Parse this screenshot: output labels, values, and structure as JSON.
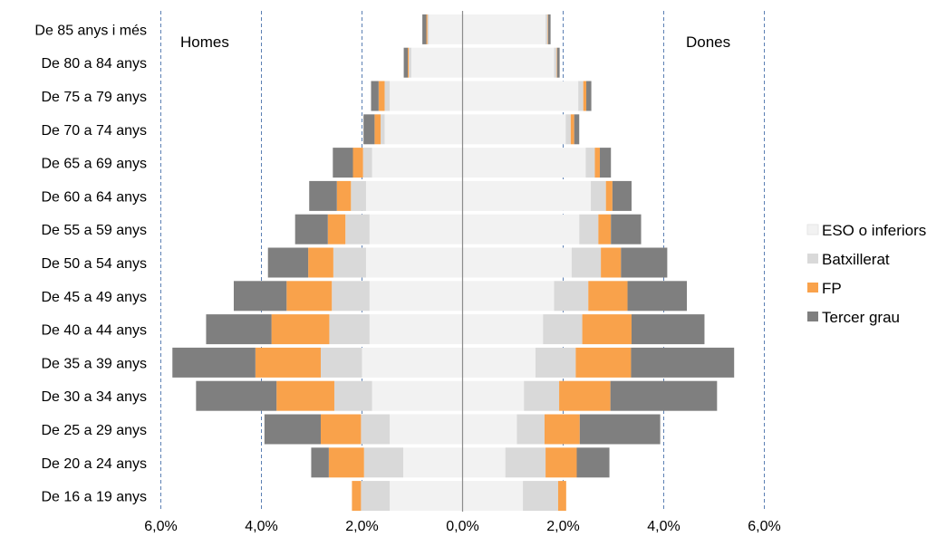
{
  "chart_data": {
    "type": "bar",
    "orientation": "horizontal",
    "stacked": true,
    "side_labels": {
      "left": "Homes",
      "right": "Dones"
    },
    "categories": [
      "De 85 anys i més",
      "De 80 a 84 anys",
      "De 75 a 79 anys",
      "De 70 a 74 anys",
      "De 65 a 69 anys",
      "De 60 a 64 anys",
      "De 55 a 59 anys",
      "De 50 a 54 anys",
      "De 45 a 49 anys",
      "De 40 a 44 anys",
      "De 35 a 39 anys",
      "De 30 a 34 anys",
      "De 25 a 29 anys",
      "De 20 a 24 anys",
      "De 16 a 19 anys"
    ],
    "series": [
      {
        "name": "ESO o inferiors",
        "color": "#f2f2f2",
        "homes": [
          0.67,
          1.02,
          1.45,
          1.55,
          1.8,
          1.92,
          1.85,
          1.92,
          1.85,
          1.85,
          2.0,
          1.8,
          1.45,
          1.18,
          1.45
        ],
        "dones": [
          1.65,
          1.82,
          2.3,
          2.05,
          2.45,
          2.55,
          2.32,
          2.17,
          1.82,
          1.6,
          1.45,
          1.22,
          1.08,
          0.85,
          1.2
        ]
      },
      {
        "name": "Batxillerat",
        "color": "#d9d9d9",
        "homes": [
          0.03,
          0.05,
          0.1,
          0.08,
          0.18,
          0.3,
          0.48,
          0.65,
          0.75,
          0.8,
          0.82,
          0.75,
          0.57,
          0.78,
          0.57
        ],
        "dones": [
          0.04,
          0.05,
          0.1,
          0.1,
          0.18,
          0.3,
          0.38,
          0.58,
          0.68,
          0.78,
          0.8,
          0.7,
          0.55,
          0.8,
          0.7
        ]
      },
      {
        "name": "FP",
        "color": "#f9a24b",
        "homes": [
          0.02,
          0.02,
          0.12,
          0.12,
          0.2,
          0.28,
          0.35,
          0.5,
          0.9,
          1.15,
          1.3,
          1.15,
          0.8,
          0.7,
          0.18
        ],
        "dones": [
          0.01,
          0.01,
          0.06,
          0.07,
          0.1,
          0.13,
          0.25,
          0.4,
          0.78,
          0.98,
          1.1,
          1.02,
          0.7,
          0.62,
          0.16
        ]
      },
      {
        "name": "Tercer grau",
        "color": "#7f7f7f",
        "homes": [
          0.08,
          0.08,
          0.15,
          0.22,
          0.4,
          0.55,
          0.65,
          0.8,
          1.05,
          1.3,
          1.65,
          1.6,
          1.12,
          0.35,
          0.0
        ],
        "dones": [
          0.05,
          0.05,
          0.1,
          0.1,
          0.22,
          0.38,
          0.6,
          0.92,
          1.18,
          1.45,
          2.05,
          2.12,
          1.6,
          0.65,
          0.0
        ]
      }
    ],
    "x_ticks": [
      "6,0%",
      "4,0%",
      "2,0%",
      "0,0%",
      "2,0%",
      "4,0%",
      "6,0%"
    ],
    "xlim": [
      -6,
      6
    ],
    "x_unit": "%",
    "gridlines": "vertical-dashed",
    "legend_position": "right"
  }
}
